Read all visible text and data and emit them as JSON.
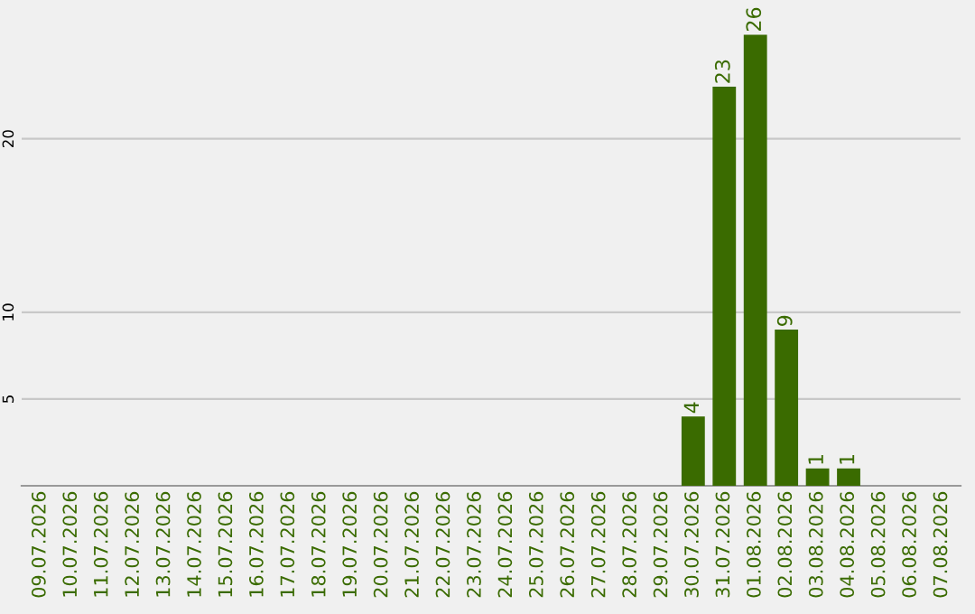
{
  "chart_data": {
    "type": "bar",
    "categories": [
      "09.07.2026",
      "10.07.2026",
      "11.07.2026",
      "12.07.2026",
      "13.07.2026",
      "14.07.2026",
      "15.07.2026",
      "16.07.2026",
      "17.07.2026",
      "18.07.2026",
      "19.07.2026",
      "20.07.2026",
      "21.07.2026",
      "22.07.2026",
      "23.07.2026",
      "24.07.2026",
      "25.07.2026",
      "26.07.2026",
      "27.07.2026",
      "28.07.2026",
      "29.07.2026",
      "30.07.2026",
      "31.07.2026",
      "01.08.2026",
      "02.08.2026",
      "03.08.2026",
      "04.08.2026",
      "05.08.2026",
      "06.08.2026",
      "07.08.2026"
    ],
    "values": [
      0,
      0,
      0,
      0,
      0,
      0,
      0,
      0,
      0,
      0,
      0,
      0,
      0,
      0,
      0,
      0,
      0,
      0,
      0,
      0,
      0,
      4,
      23,
      26,
      9,
      1,
      1,
      0,
      0,
      0
    ],
    "value_labels": [
      null,
      null,
      null,
      null,
      null,
      null,
      null,
      null,
      null,
      null,
      null,
      null,
      null,
      null,
      null,
      null,
      null,
      null,
      null,
      null,
      null,
      "4",
      "23",
      "26",
      "9",
      "1",
      "1",
      null,
      null,
      null
    ],
    "color": "#3a6b00",
    "ylim": [
      0,
      28
    ],
    "yticks": [
      5,
      10,
      20
    ],
    "grid": "y",
    "legend": false
  }
}
